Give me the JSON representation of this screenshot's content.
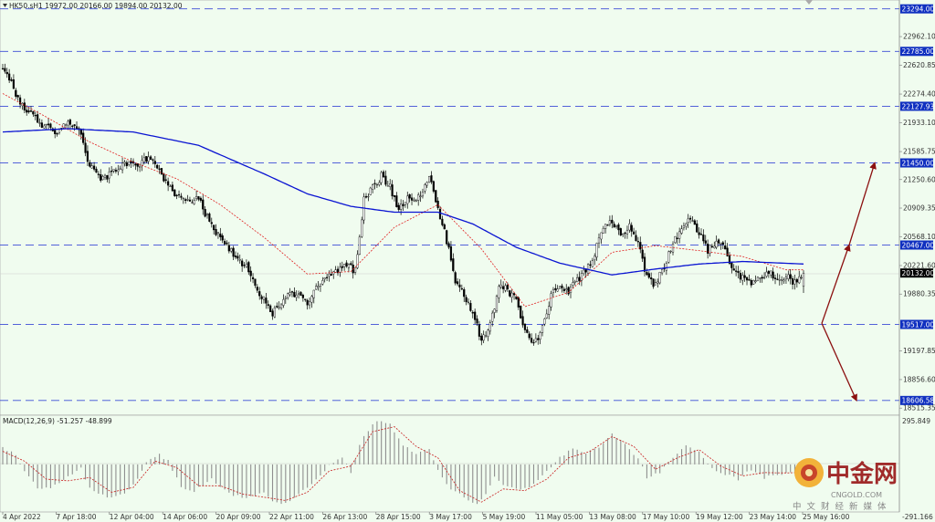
{
  "header": {
    "text": "HK50.sH1  19972.00 20166.00 19894.00 20132.00"
  },
  "macd_header": {
    "text": "MACD(12,26,9) -51.257 -48.899"
  },
  "logo": {
    "cn": "中金网",
    "en": "CNGOLD.COM",
    "sub": "中文财经新媒体"
  },
  "colors": {
    "background": "#f0fcef",
    "candle": "#000000",
    "ma_slow": "#0a14d2",
    "ma_fast": "#e02020",
    "level_line": "#3b4bd6",
    "level_label_bg": "#1030c0",
    "current_label_bg": "#000000",
    "arrow": "#8b0f0f",
    "macd_hist": "#8f8f8f",
    "macd_signal": "#c82020"
  },
  "chart_data": [
    {
      "type": "candlestick",
      "symbol": "HK50.s",
      "timeframe": "H1",
      "ohlc_last": {
        "open": 19972.0,
        "high": 20166.0,
        "low": 19894.0,
        "close": 20132.0
      },
      "ylim": [
        18430,
        23400
      ],
      "y_ticks": [
        "23294.00",
        "22962.10",
        "22785.00",
        "22620.85",
        "22274.40",
        "22127.93",
        "21933.10",
        "21585.75",
        "21450.00",
        "21250.60",
        "20909.35",
        "20568.10",
        "20467.00",
        "20221.60",
        "20132.00",
        "19880.35",
        "19517.00",
        "19197.85",
        "18856.60",
        "18606.58",
        "18515.35"
      ],
      "x_ticks": [
        "4 Apr 2022",
        "7 Apr 18:00",
        "12 Apr 04:00",
        "14 Apr 06:00",
        "20 Apr 09:00",
        "22 Apr 11:00",
        "26 Apr 13:00",
        "28 Apr 15:00",
        "3 May 17:00",
        "5 May 19:00",
        "11 May 05:00",
        "13 May 08:00",
        "17 May 10:00",
        "19 May 12:00",
        "23 May 14:00",
        "25 May 16:00"
      ],
      "levels": [
        {
          "value": 23294.0,
          "label": "23294.00"
        },
        {
          "value": 22785.0,
          "label": "22785.00"
        },
        {
          "value": 22127.93,
          "label": "22127.93"
        },
        {
          "value": 21450.0,
          "label": "21450.00"
        },
        {
          "value": 20467.0,
          "label": "20467.00"
        },
        {
          "value": 19517.0,
          "label": "19517.00"
        },
        {
          "value": 18606.58,
          "label": "18606.58"
        }
      ],
      "current_price": {
        "value": 20132.0,
        "label": "20132.00"
      },
      "close_path": [
        [
          0,
          22600
        ],
        [
          8,
          22180
        ],
        [
          16,
          21950
        ],
        [
          24,
          21820
        ],
        [
          30,
          21930
        ],
        [
          36,
          21780
        ],
        [
          40,
          21420
        ],
        [
          46,
          21250
        ],
        [
          52,
          21380
        ],
        [
          58,
          21460
        ],
        [
          62,
          21390
        ],
        [
          66,
          21510
        ],
        [
          72,
          21370
        ],
        [
          78,
          21080
        ],
        [
          84,
          20990
        ],
        [
          90,
          21020
        ],
        [
          96,
          20680
        ],
        [
          104,
          20420
        ],
        [
          112,
          20200
        ],
        [
          118,
          19880
        ],
        [
          124,
          19660
        ],
        [
          130,
          19850
        ],
        [
          136,
          19900
        ],
        [
          140,
          19780
        ],
        [
          146,
          20010
        ],
        [
          152,
          20130
        ],
        [
          158,
          20230
        ],
        [
          162,
          20160
        ],
        [
          166,
          21000
        ],
        [
          170,
          21150
        ],
        [
          174,
          21290
        ],
        [
          178,
          21160
        ],
        [
          182,
          20900
        ],
        [
          186,
          21050
        ],
        [
          190,
          20980
        ],
        [
          196,
          21280
        ],
        [
          200,
          20900
        ],
        [
          204,
          20520
        ],
        [
          208,
          20020
        ],
        [
          212,
          19880
        ],
        [
          216,
          19660
        ],
        [
          220,
          19320
        ],
        [
          224,
          19500
        ],
        [
          228,
          19970
        ],
        [
          232,
          19930
        ],
        [
          236,
          19800
        ],
        [
          240,
          19440
        ],
        [
          244,
          19270
        ],
        [
          248,
          19480
        ],
        [
          252,
          19870
        ],
        [
          256,
          19950
        ],
        [
          260,
          19900
        ],
        [
          264,
          20050
        ],
        [
          268,
          20150
        ],
        [
          272,
          20360
        ],
        [
          276,
          20700
        ],
        [
          280,
          20760
        ],
        [
          284,
          20600
        ],
        [
          288,
          20680
        ],
        [
          292,
          20480
        ],
        [
          296,
          20100
        ],
        [
          300,
          19980
        ],
        [
          304,
          20220
        ],
        [
          308,
          20470
        ],
        [
          312,
          20700
        ],
        [
          316,
          20750
        ],
        [
          320,
          20620
        ],
        [
          324,
          20410
        ],
        [
          328,
          20510
        ],
        [
          332,
          20420
        ],
        [
          336,
          20140
        ],
        [
          340,
          20070
        ],
        [
          344,
          20020
        ],
        [
          348,
          20060
        ],
        [
          352,
          20150
        ],
        [
          356,
          20030
        ],
        [
          360,
          20100
        ],
        [
          364,
          20020
        ],
        [
          368,
          20132
        ]
      ],
      "ma_slow_path": [
        [
          0,
          21820
        ],
        [
          30,
          21860
        ],
        [
          60,
          21820
        ],
        [
          90,
          21660
        ],
        [
          120,
          21320
        ],
        [
          140,
          21080
        ],
        [
          160,
          20930
        ],
        [
          180,
          20860
        ],
        [
          200,
          20860
        ],
        [
          216,
          20720
        ],
        [
          236,
          20440
        ],
        [
          256,
          20250
        ],
        [
          280,
          20110
        ],
        [
          300,
          20180
        ],
        [
          320,
          20240
        ],
        [
          340,
          20270
        ],
        [
          368,
          20240
        ]
      ],
      "ma_fast_path": [
        [
          0,
          22280
        ],
        [
          20,
          22000
        ],
        [
          40,
          21700
        ],
        [
          60,
          21460
        ],
        [
          80,
          21260
        ],
        [
          100,
          20950
        ],
        [
          120,
          20560
        ],
        [
          140,
          20120
        ],
        [
          160,
          20150
        ],
        [
          180,
          20680
        ],
        [
          200,
          20950
        ],
        [
          220,
          20420
        ],
        [
          240,
          19730
        ],
        [
          260,
          19900
        ],
        [
          280,
          20380
        ],
        [
          300,
          20460
        ],
        [
          320,
          20400
        ],
        [
          340,
          20330
        ],
        [
          360,
          20170
        ],
        [
          368,
          20170
        ]
      ],
      "scenario_arrows": [
        {
          "from": [
            19530,
            0
          ],
          "to": [
            20467,
            1
          ],
          "direction": "up"
        },
        {
          "from": [
            20467,
            1
          ],
          "to": [
            21450,
            2
          ],
          "direction": "up"
        },
        {
          "from": [
            19530,
            0
          ],
          "to": [
            18606.58,
            1
          ],
          "direction": "down"
        }
      ]
    },
    {
      "type": "macd",
      "params": "12,26,9",
      "macd_last": -51.257,
      "signal_last": -48.899,
      "ylim": [
        -290,
        300
      ],
      "y_ticks": [
        "295.849",
        "-291.166"
      ],
      "hist_path": [
        [
          0,
          100
        ],
        [
          6,
          60
        ],
        [
          10,
          -40
        ],
        [
          16,
          -140
        ],
        [
          22,
          -150
        ],
        [
          30,
          -70
        ],
        [
          36,
          -20
        ],
        [
          40,
          -150
        ],
        [
          48,
          -200
        ],
        [
          56,
          -170
        ],
        [
          62,
          -90
        ],
        [
          66,
          20
        ],
        [
          72,
          60
        ],
        [
          76,
          20
        ],
        [
          82,
          -140
        ],
        [
          88,
          -160
        ],
        [
          96,
          -90
        ],
        [
          104,
          -180
        ],
        [
          112,
          -200
        ],
        [
          120,
          -180
        ],
        [
          126,
          -240
        ],
        [
          132,
          -220
        ],
        [
          138,
          -150
        ],
        [
          144,
          -100
        ],
        [
          150,
          0
        ],
        [
          156,
          40
        ],
        [
          160,
          -50
        ],
        [
          164,
          120
        ],
        [
          168,
          210
        ],
        [
          172,
          270
        ],
        [
          178,
          240
        ],
        [
          184,
          120
        ],
        [
          190,
          60
        ],
        [
          196,
          100
        ],
        [
          200,
          -40
        ],
        [
          206,
          -150
        ],
        [
          212,
          -200
        ],
        [
          218,
          -240
        ],
        [
          222,
          -190
        ],
        [
          226,
          -80
        ],
        [
          232,
          -140
        ],
        [
          238,
          -160
        ],
        [
          244,
          -120
        ],
        [
          250,
          -40
        ],
        [
          256,
          40
        ],
        [
          262,
          100
        ],
        [
          268,
          70
        ],
        [
          274,
          110
        ],
        [
          280,
          190
        ],
        [
          286,
          120
        ],
        [
          292,
          40
        ],
        [
          296,
          -80
        ],
        [
          302,
          -50
        ],
        [
          308,
          40
        ],
        [
          314,
          110
        ],
        [
          320,
          80
        ],
        [
          326,
          -20
        ],
        [
          332,
          -60
        ],
        [
          338,
          -90
        ],
        [
          344,
          -30
        ],
        [
          350,
          -80
        ],
        [
          356,
          -60
        ],
        [
          362,
          -50
        ],
        [
          368,
          -51
        ]
      ],
      "signal_path": [
        [
          0,
          80
        ],
        [
          10,
          20
        ],
        [
          20,
          -90
        ],
        [
          30,
          -100
        ],
        [
          40,
          -80
        ],
        [
          50,
          -170
        ],
        [
          60,
          -140
        ],
        [
          70,
          20
        ],
        [
          80,
          -20
        ],
        [
          90,
          -130
        ],
        [
          100,
          -130
        ],
        [
          110,
          -180
        ],
        [
          120,
          -200
        ],
        [
          130,
          -220
        ],
        [
          140,
          -170
        ],
        [
          150,
          -40
        ],
        [
          160,
          -10
        ],
        [
          170,
          200
        ],
        [
          180,
          230
        ],
        [
          190,
          110
        ],
        [
          200,
          40
        ],
        [
          210,
          -160
        ],
        [
          220,
          -230
        ],
        [
          230,
          -150
        ],
        [
          240,
          -160
        ],
        [
          250,
          -90
        ],
        [
          260,
          40
        ],
        [
          270,
          80
        ],
        [
          280,
          170
        ],
        [
          290,
          110
        ],
        [
          300,
          -30
        ],
        [
          310,
          40
        ],
        [
          320,
          90
        ],
        [
          330,
          -10
        ],
        [
          340,
          -70
        ],
        [
          350,
          -50
        ],
        [
          360,
          -52
        ],
        [
          368,
          -49
        ]
      ]
    }
  ]
}
